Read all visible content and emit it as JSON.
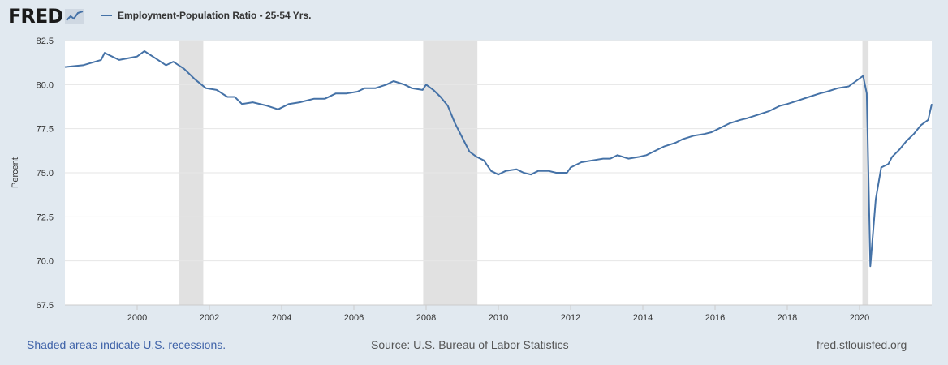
{
  "branding": {
    "logo": "FRED",
    "logo_icon": "trend-chart-icon"
  },
  "colors": {
    "series": "#4572a7",
    "recession": "#e1e1e1",
    "grid": "#e6e6e6",
    "plot_bg": "#ffffff"
  },
  "footer": {
    "recession_note": "Shaded areas indicate U.S. recessions.",
    "source": "Source: U.S. Bureau of Labor Statistics",
    "site": "fred.stlouisfed.org"
  },
  "chart_data": {
    "type": "line",
    "title": "",
    "ylabel": "Percent",
    "xlabel": "",
    "xlim": [
      1998.0,
      2022.0
    ],
    "ylim": [
      67.5,
      82.5
    ],
    "yticks": [
      "67.5",
      "70.0",
      "72.5",
      "75.0",
      "77.5",
      "80.0",
      "82.5"
    ],
    "xticks": [
      "2000",
      "2002",
      "2004",
      "2006",
      "2008",
      "2010",
      "2012",
      "2014",
      "2016",
      "2018",
      "2020"
    ],
    "grid": "horizontal",
    "recessions": [
      [
        2001.17,
        2001.83
      ],
      [
        2007.92,
        2009.42
      ],
      [
        2020.08,
        2020.25
      ]
    ],
    "series": [
      {
        "name": "Employment-Population Ratio - 25-54 Yrs.",
        "points": [
          [
            1998.0,
            81.0
          ],
          [
            1998.5,
            81.1
          ],
          [
            1999.0,
            81.4
          ],
          [
            1999.1,
            81.8
          ],
          [
            1999.5,
            81.4
          ],
          [
            2000.0,
            81.6
          ],
          [
            2000.2,
            81.9
          ],
          [
            2000.5,
            81.5
          ],
          [
            2000.8,
            81.1
          ],
          [
            2001.0,
            81.3
          ],
          [
            2001.3,
            80.9
          ],
          [
            2001.6,
            80.3
          ],
          [
            2001.9,
            79.8
          ],
          [
            2002.2,
            79.7
          ],
          [
            2002.5,
            79.3
          ],
          [
            2002.7,
            79.3
          ],
          [
            2002.9,
            78.9
          ],
          [
            2003.2,
            79.0
          ],
          [
            2003.6,
            78.8
          ],
          [
            2003.9,
            78.6
          ],
          [
            2004.2,
            78.9
          ],
          [
            2004.5,
            79.0
          ],
          [
            2004.9,
            79.2
          ],
          [
            2005.2,
            79.2
          ],
          [
            2005.5,
            79.5
          ],
          [
            2005.8,
            79.5
          ],
          [
            2006.1,
            79.6
          ],
          [
            2006.3,
            79.8
          ],
          [
            2006.6,
            79.8
          ],
          [
            2006.9,
            80.0
          ],
          [
            2007.1,
            80.2
          ],
          [
            2007.4,
            80.0
          ],
          [
            2007.6,
            79.8
          ],
          [
            2007.9,
            79.7
          ],
          [
            2008.0,
            80.0
          ],
          [
            2008.2,
            79.7
          ],
          [
            2008.4,
            79.3
          ],
          [
            2008.6,
            78.8
          ],
          [
            2008.8,
            77.8
          ],
          [
            2009.0,
            77.0
          ],
          [
            2009.2,
            76.2
          ],
          [
            2009.4,
            75.9
          ],
          [
            2009.6,
            75.7
          ],
          [
            2009.8,
            75.1
          ],
          [
            2010.0,
            74.9
          ],
          [
            2010.2,
            75.1
          ],
          [
            2010.5,
            75.2
          ],
          [
            2010.7,
            75.0
          ],
          [
            2010.9,
            74.9
          ],
          [
            2011.1,
            75.1
          ],
          [
            2011.4,
            75.1
          ],
          [
            2011.6,
            75.0
          ],
          [
            2011.9,
            75.0
          ],
          [
            2012.0,
            75.3
          ],
          [
            2012.3,
            75.6
          ],
          [
            2012.6,
            75.7
          ],
          [
            2012.9,
            75.8
          ],
          [
            2013.1,
            75.8
          ],
          [
            2013.3,
            76.0
          ],
          [
            2013.6,
            75.8
          ],
          [
            2013.9,
            75.9
          ],
          [
            2014.1,
            76.0
          ],
          [
            2014.3,
            76.2
          ],
          [
            2014.6,
            76.5
          ],
          [
            2014.9,
            76.7
          ],
          [
            2015.1,
            76.9
          ],
          [
            2015.4,
            77.1
          ],
          [
            2015.7,
            77.2
          ],
          [
            2015.9,
            77.3
          ],
          [
            2016.1,
            77.5
          ],
          [
            2016.4,
            77.8
          ],
          [
            2016.7,
            78.0
          ],
          [
            2016.9,
            78.1
          ],
          [
            2017.2,
            78.3
          ],
          [
            2017.5,
            78.5
          ],
          [
            2017.8,
            78.8
          ],
          [
            2018.0,
            78.9
          ],
          [
            2018.3,
            79.1
          ],
          [
            2018.6,
            79.3
          ],
          [
            2018.9,
            79.5
          ],
          [
            2019.1,
            79.6
          ],
          [
            2019.4,
            79.8
          ],
          [
            2019.7,
            79.9
          ],
          [
            2019.9,
            80.2
          ],
          [
            2020.1,
            80.5
          ],
          [
            2020.2,
            79.5
          ],
          [
            2020.3,
            69.7
          ],
          [
            2020.45,
            73.5
          ],
          [
            2020.6,
            75.3
          ],
          [
            2020.8,
            75.5
          ],
          [
            2020.9,
            75.9
          ],
          [
            2021.1,
            76.3
          ],
          [
            2021.3,
            76.8
          ],
          [
            2021.5,
            77.2
          ],
          [
            2021.7,
            77.7
          ],
          [
            2021.9,
            78.0
          ],
          [
            2022.0,
            78.9
          ]
        ]
      }
    ]
  }
}
